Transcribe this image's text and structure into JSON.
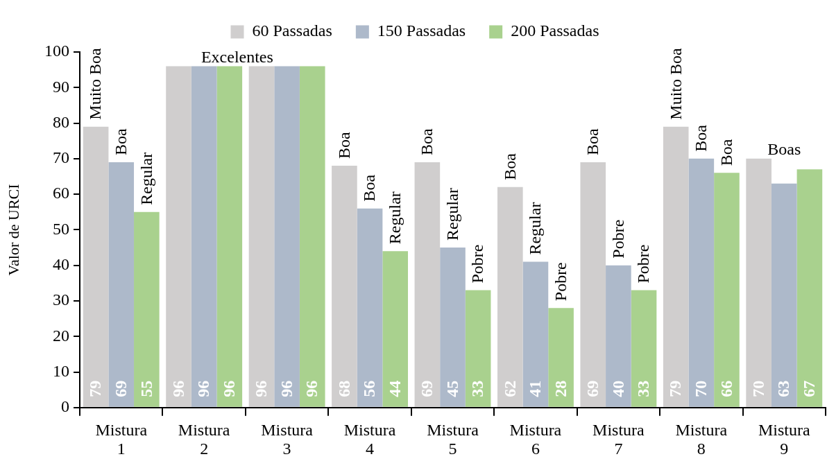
{
  "chart_data": {
    "type": "bar",
    "ylabel": "Valor de URCI",
    "categories": [
      "Mistura 1",
      "Mistura 2",
      "Mistura 3",
      "Mistura 4",
      "Mistura 5",
      "Mistura 6",
      "Mistura 7",
      "Mistura 8",
      "Mistura 9"
    ],
    "series": [
      {
        "name": "60 Passadas",
        "color": "#d0cece",
        "values": [
          79,
          96,
          96,
          68,
          69,
          62,
          69,
          79,
          70
        ]
      },
      {
        "name": "150 Passadas",
        "color": "#adb9ca",
        "values": [
          69,
          96,
          96,
          56,
          45,
          41,
          40,
          70,
          63
        ]
      },
      {
        "name": "200 Passadas",
        "color": "#a9d18e",
        "values": [
          55,
          96,
          96,
          44,
          33,
          28,
          33,
          66,
          67
        ]
      }
    ],
    "ylim": [
      0,
      100
    ],
    "yticks": [
      0,
      10,
      20,
      30,
      40,
      50,
      60,
      70,
      80,
      90,
      100
    ],
    "grid": false,
    "legend": "top",
    "data_labels": true,
    "annotations": [
      "Muito Boa",
      "Boa",
      "Regular",
      {
        "text": "Excelentes",
        "x": "Mistura 2",
        "y": 96
      },
      "Boa",
      "Boa",
      "Regular",
      "Boa",
      "Regular",
      "Pobre",
      "Boa",
      "Regular",
      "Pobre",
      "Boa",
      "Pobre",
      "Pobre",
      "Muito Boa",
      "Boa",
      "Boa",
      "Boas"
    ]
  }
}
